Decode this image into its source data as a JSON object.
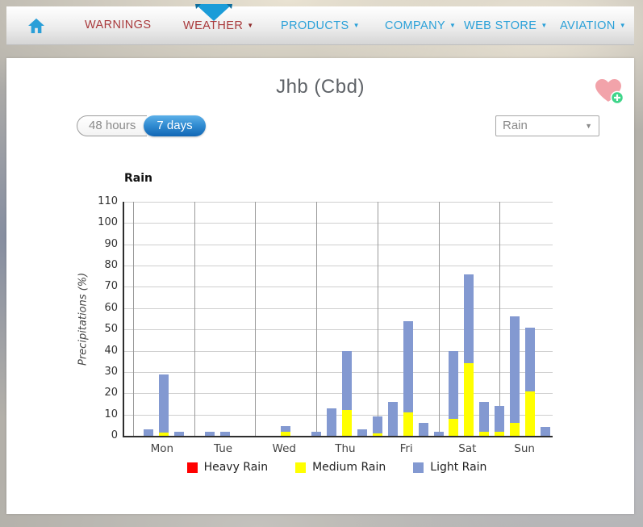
{
  "nav": {
    "items": [
      {
        "label": "WARNINGS",
        "style": "red",
        "dropdown": false,
        "active": false
      },
      {
        "label": "WEATHER",
        "style": "red",
        "dropdown": true,
        "active": true
      },
      {
        "label": "PRODUCTS",
        "style": "blue",
        "dropdown": true,
        "active": false
      },
      {
        "label": "COMPANY",
        "style": "blue",
        "dropdown": true,
        "active": false
      },
      {
        "label": "WEB STORE",
        "style": "blue",
        "dropdown": true,
        "active": false
      },
      {
        "label": "AVIATION",
        "style": "blue",
        "dropdown": true,
        "active": false
      }
    ]
  },
  "page": {
    "title": "Jhb (Cbd)"
  },
  "controls": {
    "range_toggle": {
      "options": [
        "48 hours",
        "7 days"
      ],
      "selected": "7 days"
    },
    "metric_select": {
      "value": "Rain"
    }
  },
  "colors": {
    "nav_red": "#a93a3c",
    "nav_blue": "#29a0d8",
    "active_tab_arrow": "#1b9cd8",
    "toggle_active_blue": "#1166b4",
    "heart_pink": "#f2a3aa",
    "favorite_add_green": "#3fd58a"
  },
  "chart_data": {
    "type": "bar",
    "stacked": true,
    "title": "Rain",
    "xlabel": "",
    "ylabel": "Precipitations (%)",
    "ylim": [
      0,
      110
    ],
    "ytick_step": 10,
    "grid": true,
    "legend_position": "bottom",
    "categories": [
      "Mon",
      "Tue",
      "Wed",
      "Thu",
      "Fri",
      "Sat",
      "Sun"
    ],
    "bars_per_day": 4,
    "series": [
      {
        "name": "Heavy Rain",
        "color": "#ff0000",
        "values": [
          0,
          0,
          0,
          0,
          0,
          0,
          0,
          0,
          0,
          0,
          0,
          0,
          0,
          0,
          0,
          0,
          0,
          0,
          0,
          0,
          0,
          0,
          0,
          0,
          0,
          0,
          0,
          0
        ]
      },
      {
        "name": "Medium Rain",
        "color": "#ffff00",
        "values": [
          0,
          1.5,
          0,
          0,
          0,
          0,
          0,
          0,
          0,
          2,
          0,
          0,
          0,
          12,
          0,
          1,
          0,
          11,
          0,
          0,
          8,
          34,
          2,
          2,
          6,
          21,
          0,
          0
        ]
      },
      {
        "name": "Light Rain",
        "color": "#8399d1",
        "values": [
          3,
          27.5,
          2,
          0,
          2,
          2,
          0,
          0,
          0,
          2.5,
          0,
          2,
          13,
          28,
          3,
          8,
          16,
          43,
          6,
          2,
          32,
          42,
          14,
          12,
          50,
          30,
          4,
          0
        ]
      }
    ]
  }
}
